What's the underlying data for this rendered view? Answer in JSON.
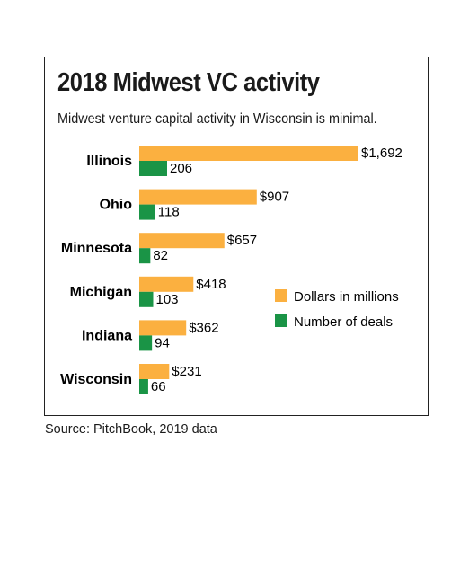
{
  "source": "Source: PitchBook, 2019 data",
  "colors": {
    "dollars": "#fbb040",
    "deals": "#1a9446"
  },
  "chart_data": {
    "type": "bar",
    "orientation": "horizontal",
    "title": "2018 Midwest VC activity",
    "subtitle": "Midwest venture capital activity in Wisconsin is minimal.",
    "categories": [
      "Illinois",
      "Ohio",
      "Minnesota",
      "Michigan",
      "Indiana",
      "Wisconsin"
    ],
    "series": [
      {
        "name": "Dollars in millions",
        "values": [
          1692,
          907,
          657,
          418,
          362,
          231
        ],
        "labels": [
          "$1,692",
          "$907",
          "$657",
          "$418",
          "$362",
          "$231"
        ]
      },
      {
        "name": "Number of deals",
        "values": [
          206,
          118,
          82,
          103,
          94,
          66
        ],
        "labels": [
          "206",
          "118",
          "82",
          "103",
          "94",
          "66"
        ]
      }
    ],
    "legend_position": "right",
    "grid": false
  }
}
